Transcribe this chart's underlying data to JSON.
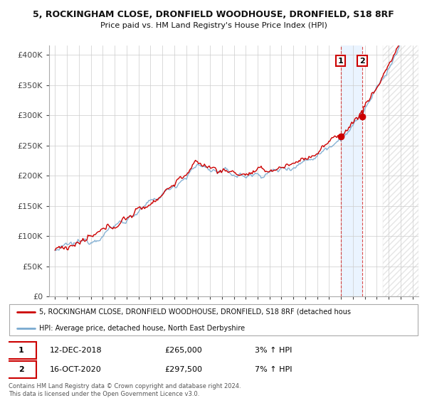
{
  "title1": "5, ROCKINGHAM CLOSE, DRONFIELD WOODHOUSE, DRONFIELD, S18 8RF",
  "title2": "Price paid vs. HM Land Registry's House Price Index (HPI)",
  "legend1": "5, ROCKINGHAM CLOSE, DRONFIELD WOODHOUSE, DRONFIELD, S18 8RF (detached hous",
  "legend2": "HPI: Average price, detached house, North East Derbyshire",
  "annotation1_date": "12-DEC-2018",
  "annotation1_price": "£265,000",
  "annotation1_hpi": "3% ↑ HPI",
  "annotation2_date": "16-OCT-2020",
  "annotation2_price": "£297,500",
  "annotation2_hpi": "7% ↑ HPI",
  "footer1": "Contains HM Land Registry data © Crown copyright and database right 2024.",
  "footer2": "This data is licensed under the Open Government Licence v3.0.",
  "ylabel_ticks": [
    "£0",
    "£50K",
    "£100K",
    "£150K",
    "£200K",
    "£250K",
    "£300K",
    "£350K",
    "£400K"
  ],
  "ytick_values": [
    0,
    50000,
    100000,
    150000,
    200000,
    250000,
    300000,
    350000,
    400000
  ],
  "hpi_color": "#7aaad0",
  "price_color": "#cc0000",
  "sale1_date_num": 2018.96,
  "sale1_price": 265000,
  "sale2_date_num": 2020.79,
  "sale2_price": 297500,
  "background_color": "#ffffff",
  "grid_color": "#cccccc",
  "shade_color": "#ddeeff",
  "hatch_color": "#cccccc"
}
